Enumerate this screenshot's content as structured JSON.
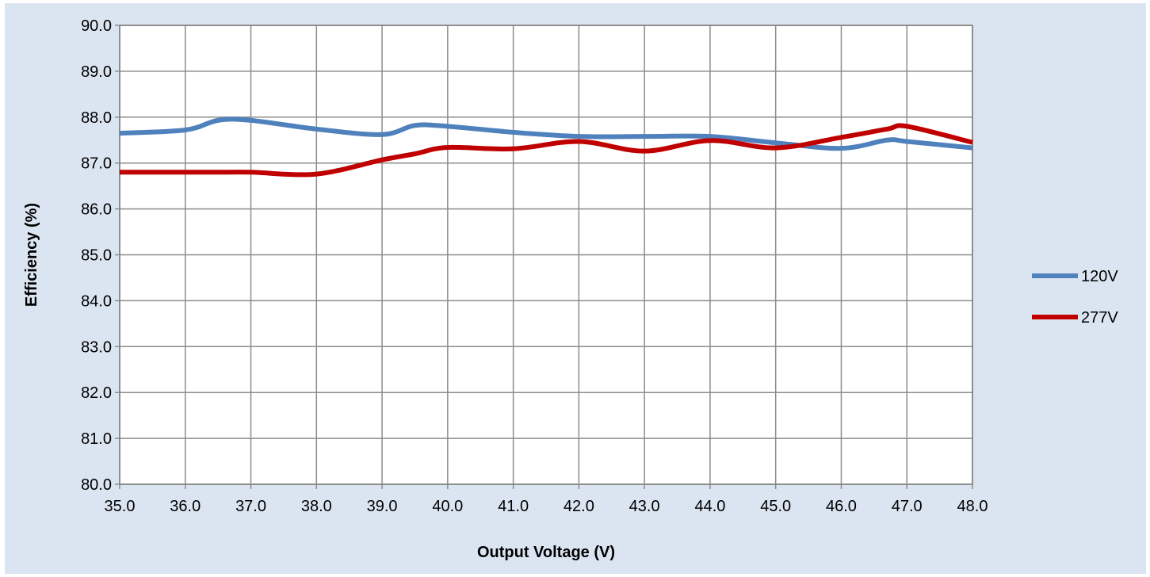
{
  "chart_data": {
    "type": "line",
    "title": "",
    "xlabel": "Output Voltage (V)",
    "ylabel": "Efficiency (%)",
    "xlim": [
      35.0,
      48.0
    ],
    "ylim": [
      80.0,
      90.0
    ],
    "x_ticks": [
      "35.0",
      "36.0",
      "37.0",
      "38.0",
      "39.0",
      "40.0",
      "41.0",
      "42.0",
      "43.0",
      "44.0",
      "45.0",
      "46.0",
      "47.0",
      "48.0"
    ],
    "y_ticks": [
      "90.0",
      "89.0",
      "88.0",
      "87.0",
      "86.0",
      "85.0",
      "84.0",
      "83.0",
      "82.0",
      "81.0",
      "80.0"
    ],
    "grid": true,
    "legend_position": "right",
    "x": [
      35.0,
      36.0,
      36.5,
      37.0,
      38.0,
      39.0,
      39.5,
      40.0,
      41.0,
      42.0,
      43.0,
      44.0,
      45.0,
      46.0,
      46.7,
      47.0,
      48.0
    ],
    "series": [
      {
        "name": "120V",
        "color": "#4f81bd",
        "values": [
          87.65,
          87.72,
          87.93,
          87.93,
          87.74,
          87.62,
          87.82,
          87.8,
          87.67,
          87.58,
          87.58,
          87.58,
          87.44,
          87.32,
          87.5,
          87.47,
          87.33
        ]
      },
      {
        "name": "277V",
        "color": "#c00000",
        "values": [
          86.8,
          86.8,
          86.8,
          86.8,
          86.76,
          87.07,
          87.2,
          87.34,
          87.31,
          87.47,
          87.26,
          87.49,
          87.33,
          87.56,
          87.74,
          87.8,
          87.45
        ]
      }
    ]
  }
}
